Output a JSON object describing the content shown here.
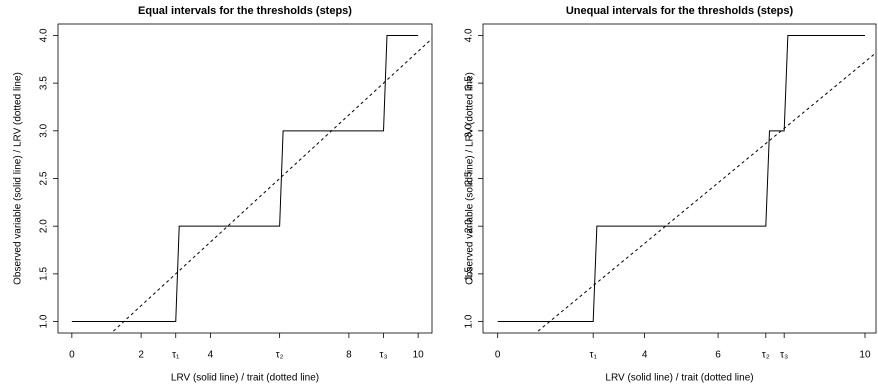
{
  "chart_data": [
    {
      "type": "line",
      "title": "Equal intervals for the thresholds (steps)",
      "x_label": "LRV (solid line) / trait (dotted line)",
      "y_label": "Observed variable (solid line) / LRV (dotted line)",
      "xlim": [
        -0.4,
        10.4
      ],
      "ylim": [
        0.88,
        4.12
      ],
      "xticks": [
        0,
        2,
        {
          "value": 3,
          "label": "τ₁"
        },
        4,
        {
          "value": 6,
          "label": "τ₂"
        },
        8,
        {
          "value": 9,
          "label": "τ₃"
        },
        10
      ],
      "yticks": [
        {
          "value": 1,
          "label": "1.0"
        },
        {
          "value": 1.5,
          "label": "1.5"
        },
        {
          "value": 2,
          "label": "2.0"
        },
        {
          "value": 2.5,
          "label": "2.5"
        },
        {
          "value": 3,
          "label": "3.0"
        },
        {
          "value": 3.5,
          "label": "3.5"
        },
        {
          "value": 4,
          "label": "4.0"
        }
      ],
      "series": [
        {
          "color": "#000000",
          "style": "solid",
          "x": [
            0,
            3,
            3.1,
            6,
            6.1,
            9,
            9.1,
            10
          ],
          "values": [
            1,
            1,
            2,
            2,
            3,
            3,
            4,
            4
          ]
        },
        {
          "color": "#000000",
          "style": "dashed",
          "x": [
            1.2,
            10.5
          ],
          "values": [
            0.9,
            4.0
          ]
        }
      ]
    },
    {
      "type": "line",
      "title": "Unequal intervals for the thresholds (steps)",
      "x_label": "LRV (solid line) / trait (dotted line)",
      "y_label": "Observed variable (solid line) / LRV (dotted line)",
      "xlim": [
        -0.4,
        10.3
      ],
      "ylim": [
        0.88,
        4.12
      ],
      "xticks": [
        0,
        {
          "value": 2.6,
          "label": "τ₁"
        },
        4,
        6,
        {
          "value": 7.3,
          "label": "τ₂"
        },
        {
          "value": 7.8,
          "label": "τ₃"
        },
        10
      ],
      "yticks": [
        {
          "value": 1,
          "label": "1.0"
        },
        {
          "value": 1.5,
          "label": "1.5"
        },
        {
          "value": 2,
          "label": "2.0"
        },
        {
          "value": 2.5,
          "label": "2.5"
        },
        {
          "value": 3,
          "label": "3.0"
        },
        {
          "value": 3.5,
          "label": "3.5"
        },
        {
          "value": 4,
          "label": "4.0"
        }
      ],
      "series": [
        {
          "color": "#000000",
          "style": "solid",
          "x": [
            0,
            2.6,
            2.7,
            7.3,
            7.4,
            7.8,
            7.9,
            10
          ],
          "values": [
            1,
            1,
            2,
            2,
            3,
            3,
            4,
            4
          ]
        },
        {
          "color": "#000000",
          "style": "dashed",
          "x": [
            1.1,
            10.4
          ],
          "values": [
            0.9,
            3.85
          ]
        }
      ]
    }
  ]
}
